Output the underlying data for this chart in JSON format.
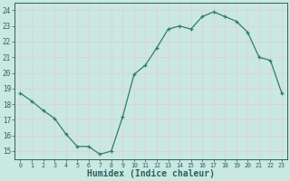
{
  "x": [
    0,
    1,
    2,
    3,
    4,
    5,
    6,
    7,
    8,
    9,
    10,
    11,
    12,
    13,
    14,
    15,
    16,
    17,
    18,
    19,
    20,
    21,
    22,
    23
  ],
  "y": [
    18.7,
    18.2,
    17.6,
    17.1,
    16.1,
    15.3,
    15.3,
    14.8,
    15.0,
    17.2,
    19.9,
    20.5,
    21.6,
    22.8,
    23.0,
    22.8,
    23.6,
    23.9,
    23.6,
    23.3,
    22.6,
    21.0,
    20.8,
    18.7
  ],
  "line_color": "#2e7d6e",
  "marker": "+",
  "bg_color": "#c8e8e0",
  "grid_color": "#e0d0d8",
  "xlabel": "Humidex (Indice chaleur)",
  "ylabel_ticks": [
    15,
    16,
    17,
    18,
    19,
    20,
    21,
    22,
    23,
    24
  ],
  "xlim": [
    -0.5,
    23.5
  ],
  "ylim": [
    14.5,
    24.5
  ],
  "tick_color": "#2e6060",
  "label_color": "#2e6060",
  "font_family": "monospace",
  "xlabel_fontsize": 7.0,
  "ytick_fontsize": 5.5,
  "xtick_fontsize": 4.8
}
